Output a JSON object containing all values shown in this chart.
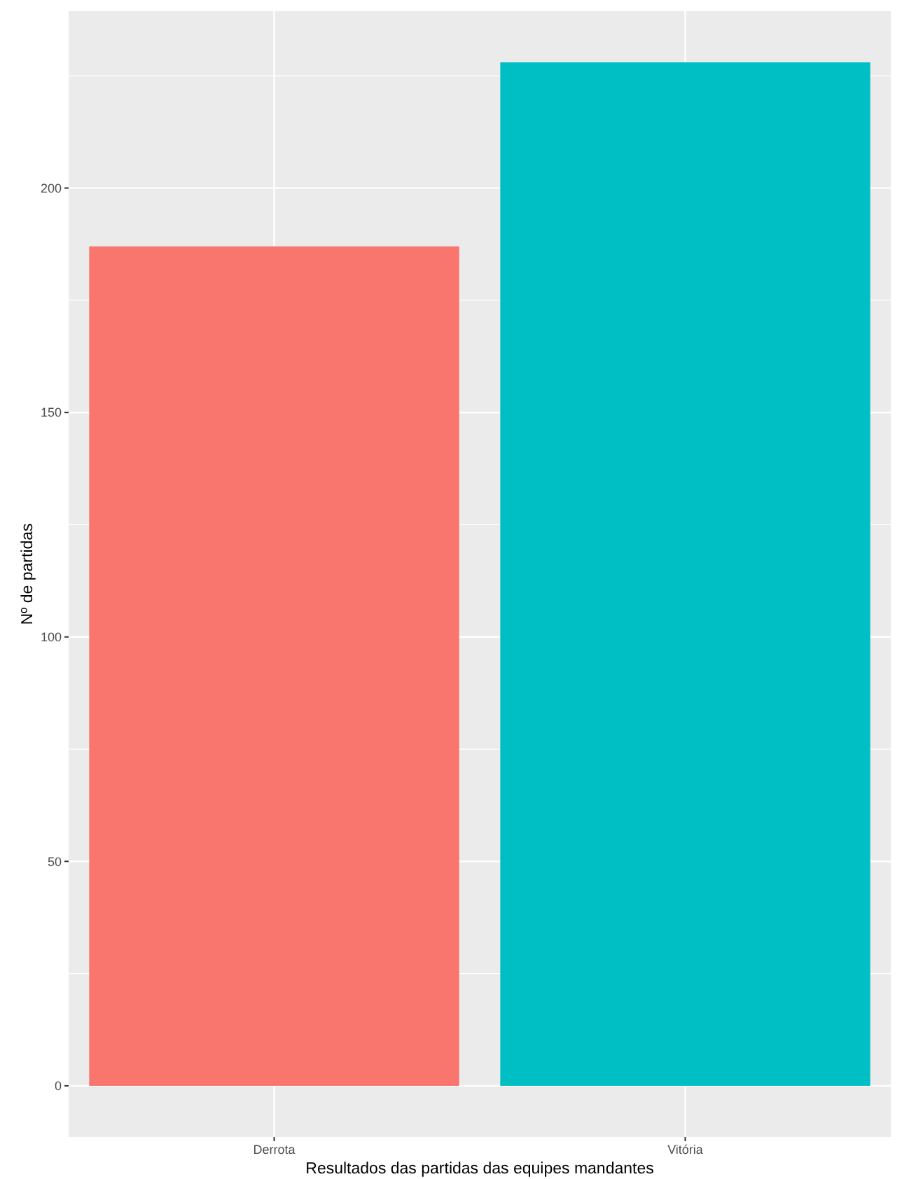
{
  "chart_data": {
    "type": "bar",
    "xlabel": "Resultados das partidas das equipes mandantes",
    "ylabel": "Nº de partidas",
    "categories": [
      "Derrota",
      "Vitória"
    ],
    "values": [
      187,
      228
    ],
    "colors": [
      "#f8766d",
      "#00bfc4"
    ],
    "ylim": [
      -11.4,
      239.4
    ],
    "yticks": [
      0,
      50,
      100,
      150,
      200
    ],
    "grid": true
  }
}
